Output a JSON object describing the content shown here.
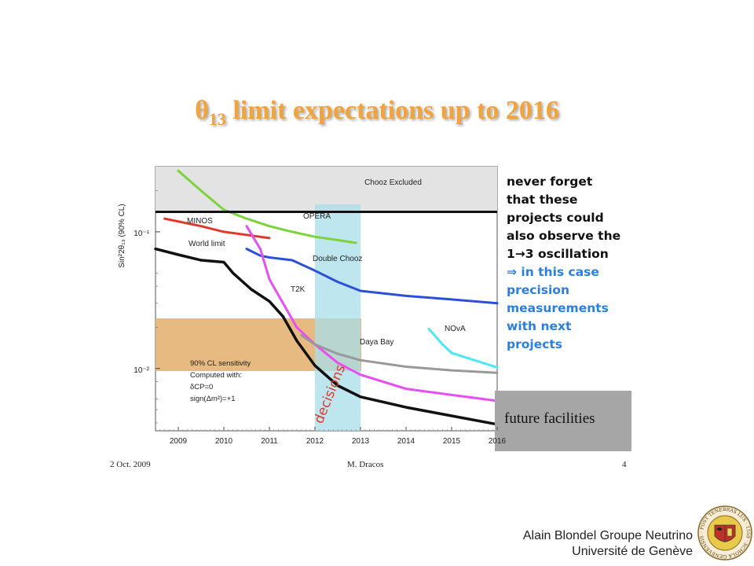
{
  "title": {
    "main": "θ",
    "sub": "13",
    "rest": " limit expectations up to 2016"
  },
  "note": {
    "black_lines": [
      "never forget",
      "that these",
      "projects could",
      "also observe the",
      "1→3 oscillation"
    ],
    "blue_lines": [
      "⇒ in this case",
      "precision",
      "measurements",
      "with next",
      "projects"
    ]
  },
  "slide_footer": {
    "date": "2 Oct. 2009",
    "author": "M. Dracos",
    "page": "4"
  },
  "footer": {
    "line1": "Alain Blondel Groupe Neutrino",
    "line2": "Université de Genève"
  },
  "seal": {
    "text": "· POST TENEBRAS LUX · 1559 · SCHOLA GENEVENSIS"
  },
  "colors": {
    "title": "#f2a33c",
    "note_blue": "#2a7fe0",
    "chooz_band": "#e3e3e3",
    "sensitivity_band": "#e4b373",
    "decisions_band": "#a8dde9",
    "future_box": "#a6a6a6"
  },
  "chart_data": {
    "type": "line",
    "y_label": "Sin²2θ₁₃ (90% CL)",
    "y_scale": "log",
    "x_ticks": [
      "2009",
      "2010",
      "2011",
      "2012",
      "2013",
      "2014",
      "2015",
      "2016"
    ],
    "y_ticks": [
      "10⁻¹",
      "10⁻²"
    ],
    "xlim": [
      2008.5,
      2016
    ],
    "ylim": [
      0.0035,
      0.3
    ],
    "annotations": {
      "chooz": "Chooz Excluded",
      "sensitivity": [
        "90% CL sensitivity",
        "Computed with:",
        "δCP=0",
        "sign(Δm²)=+1"
      ],
      "decisions": "decisions",
      "future": "future facilities"
    },
    "chooz_limit": 0.14,
    "series": [
      {
        "name": "MINOS",
        "color": "#e0392b",
        "x": [
          2008.7,
          2009.5,
          2010,
          2010.5,
          2011
        ],
        "y": [
          0.125,
          0.11,
          0.1,
          0.095,
          0.09
        ]
      },
      {
        "name": "OPERA",
        "color": "#7cd33a",
        "x": [
          2009,
          2009.5,
          2010,
          2010.5,
          2011,
          2011.5,
          2012,
          2012.5,
          2012.9
        ],
        "y": [
          0.28,
          0.2,
          0.145,
          0.125,
          0.11,
          0.1,
          0.092,
          0.087,
          0.083
        ]
      },
      {
        "name": "World limit",
        "color": "#111111",
        "x": [
          2008.5,
          2009,
          2009.5,
          2010,
          2010.2,
          2010.6,
          2011,
          2011.3,
          2011.6,
          2012,
          2012.5,
          2013,
          2014,
          2015,
          2016
        ],
        "y": [
          0.075,
          0.068,
          0.062,
          0.06,
          0.05,
          0.038,
          0.031,
          0.024,
          0.016,
          0.0105,
          0.0075,
          0.0062,
          0.0052,
          0.0045,
          0.0039
        ]
      },
      {
        "name": "Double Chooz",
        "color": "#2b4fd8",
        "x": [
          2010.5,
          2010.8,
          2011,
          2011.5,
          2012,
          2012.5,
          2013,
          2014,
          2015,
          2016
        ],
        "y": [
          0.075,
          0.067,
          0.065,
          0.062,
          0.052,
          0.043,
          0.037,
          0.034,
          0.032,
          0.03
        ]
      },
      {
        "name": "T2K",
        "color": "#e64ff0",
        "x": [
          2010.5,
          2010.8,
          2011,
          2011.3,
          2011.6,
          2012,
          2012.5,
          2013,
          2014,
          2015,
          2016
        ],
        "y": [
          0.11,
          0.075,
          0.045,
          0.03,
          0.02,
          0.015,
          0.011,
          0.009,
          0.0071,
          0.0064,
          0.0058
        ]
      },
      {
        "name": "Daya Bay",
        "color": "#999999",
        "x": [
          2011.7,
          2012,
          2012.5,
          2013,
          2014,
          2015,
          2016
        ],
        "y": [
          0.0175,
          0.015,
          0.0128,
          0.0115,
          0.0103,
          0.0097,
          0.0093
        ]
      },
      {
        "name": "NOvA",
        "color": "#4de8f2",
        "x": [
          2014.5,
          2014.8,
          2015,
          2015.5,
          2016
        ],
        "y": [
          0.0195,
          0.015,
          0.013,
          0.0115,
          0.0102
        ]
      }
    ]
  }
}
